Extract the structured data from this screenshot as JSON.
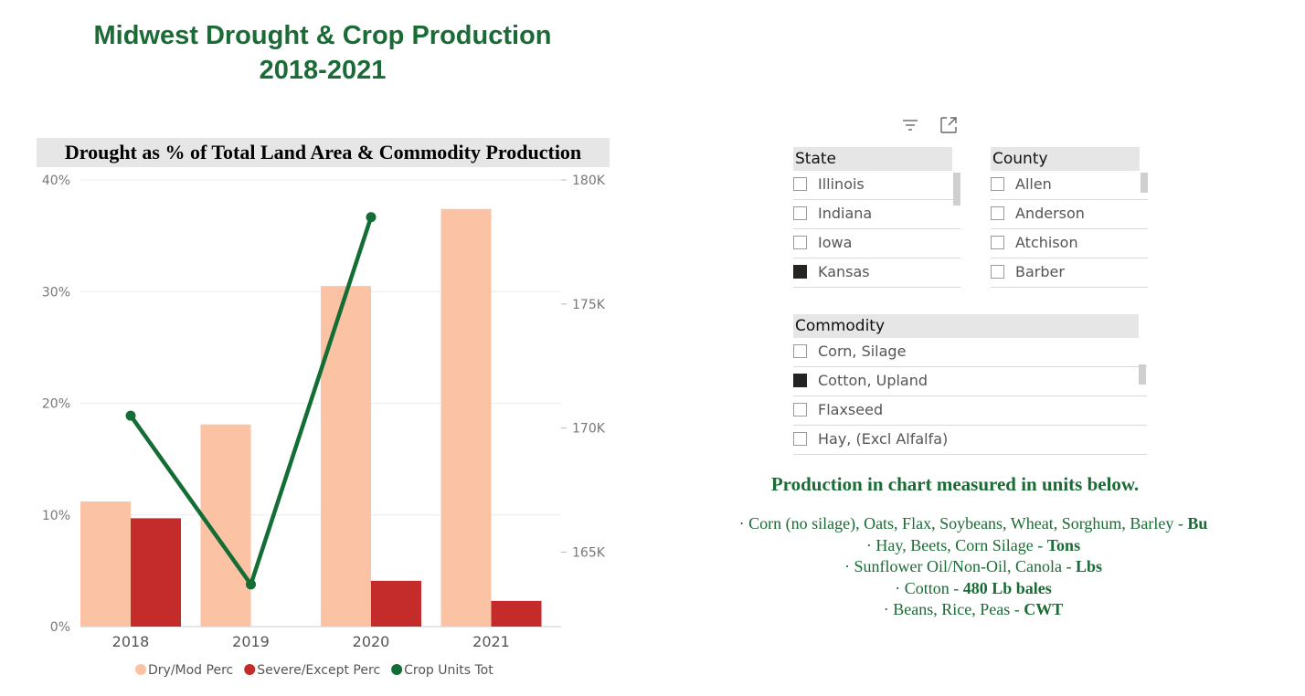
{
  "page": {
    "title_line1": "Midwest Drought & Crop Production",
    "title_line2": "2018-2021",
    "title_color": "#1a6b35"
  },
  "chart_data": {
    "type": "bar",
    "title": "Drought as % of Total Land Area & Commodity Production",
    "categories": [
      "2018",
      "2019",
      "2020",
      "2021"
    ],
    "series": [
      {
        "name": "Dry/Mod Perc",
        "type": "bar",
        "axis": "left",
        "color": "#fbc2a4",
        "values": [
          11.2,
          18.1,
          30.5,
          37.4
        ]
      },
      {
        "name": "Severe/Except Perc",
        "type": "bar",
        "axis": "left",
        "color": "#c42b2b",
        "values": [
          9.7,
          0,
          4.1,
          2.3
        ]
      },
      {
        "name": "Crop Units Tot",
        "type": "line",
        "axis": "right",
        "color": "#136d34",
        "values": [
          170500,
          163700,
          178500,
          null
        ]
      }
    ],
    "y_left": {
      "min": 0,
      "max": 40,
      "ticks": [
        0,
        10,
        20,
        30,
        40
      ],
      "tick_labels": [
        "0%",
        "10%",
        "20%",
        "30%",
        "40%"
      ]
    },
    "y_right": {
      "min": 162000,
      "max": 180000,
      "ticks": [
        165000,
        170000,
        175000,
        180000
      ],
      "tick_labels": [
        "165K",
        "170K",
        "175K",
        "180K"
      ]
    },
    "xlabel": "",
    "ylabel": "",
    "grid": true,
    "legend": {
      "position": "bottom",
      "items": [
        "Dry/Mod Perc",
        "Severe/Except Perc",
        "Crop Units Tot"
      ]
    }
  },
  "visual_header": {
    "icons": [
      "filter-icon",
      "focus-mode-icon"
    ]
  },
  "slicers": {
    "state": {
      "header": "State",
      "items": [
        {
          "label": "Illinois",
          "checked": false
        },
        {
          "label": "Indiana",
          "checked": false
        },
        {
          "label": "Iowa",
          "checked": false
        },
        {
          "label": "Kansas",
          "checked": true
        }
      ]
    },
    "county": {
      "header": "County",
      "items": [
        {
          "label": "Allen",
          "checked": false
        },
        {
          "label": "Anderson",
          "checked": false
        },
        {
          "label": "Atchison",
          "checked": false
        },
        {
          "label": "Barber",
          "checked": false
        }
      ]
    },
    "commodity": {
      "header": "Commodity",
      "items": [
        {
          "label": "Corn, Silage",
          "checked": false
        },
        {
          "label": "Cotton, Upland",
          "checked": true
        },
        {
          "label": "Flaxseed",
          "checked": false
        },
        {
          "label": "Hay, (Excl Alfalfa)",
          "checked": false
        }
      ]
    }
  },
  "units": {
    "title": "Production in chart measured in units below.",
    "lines": [
      {
        "bullet": "·",
        "text": "Corn (no silage), Oats, Flax, Soybeans, Wheat, Sorghum, Barley - ",
        "unit": "Bu"
      },
      {
        "bullet": "·",
        "text": "Hay, Beets, Corn Silage - ",
        "unit": "Tons"
      },
      {
        "bullet": "·",
        "text": "Sunflower Oil/Non-Oil, Canola - ",
        "unit": "Lbs"
      },
      {
        "bullet": "·",
        "text": "Cotton - ",
        "unit": "480 Lb bales"
      },
      {
        "bullet": "·",
        "text": "Beans, Rice, Peas - ",
        "unit": "CWT"
      }
    ],
    "color": "#1a6b35"
  }
}
